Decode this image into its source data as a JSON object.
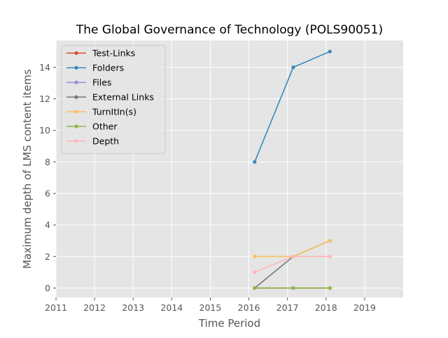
{
  "chart_data": {
    "type": "line",
    "title": "The Global Governance of Technology (POLS90051)",
    "xlabel": "Time Period",
    "ylabel": "Maximum depth of LMS content items",
    "xlim": [
      2011,
      2020
    ],
    "ylim": [
      -0.6,
      15.7
    ],
    "xticks": [
      2011,
      2012,
      2013,
      2014,
      2015,
      2016,
      2017,
      2018,
      2019
    ],
    "yticks": [
      0,
      2,
      4,
      6,
      8,
      10,
      12,
      14
    ],
    "grid": true,
    "legend_position": "upper-left",
    "x": [
      2016.15,
      2017.15,
      2018.1
    ],
    "series": [
      {
        "name": "Test-Links",
        "color": "#E24A33",
        "values": [
          0,
          0,
          0
        ]
      },
      {
        "name": "Folders",
        "color": "#348ABD",
        "values": [
          8,
          14,
          15
        ]
      },
      {
        "name": "Files",
        "color": "#988ED5",
        "values": [
          0,
          0,
          0
        ]
      },
      {
        "name": "External Links",
        "color": "#777777",
        "values": [
          0,
          2,
          3
        ]
      },
      {
        "name": "TurnItIn(s)",
        "color": "#FBC15E",
        "values": [
          2,
          2,
          3
        ]
      },
      {
        "name": "Other",
        "color": "#8EBA42",
        "values": [
          0,
          0,
          0
        ]
      },
      {
        "name": "Depth",
        "color": "#FFB5B8",
        "values": [
          1,
          2,
          2
        ]
      }
    ]
  }
}
